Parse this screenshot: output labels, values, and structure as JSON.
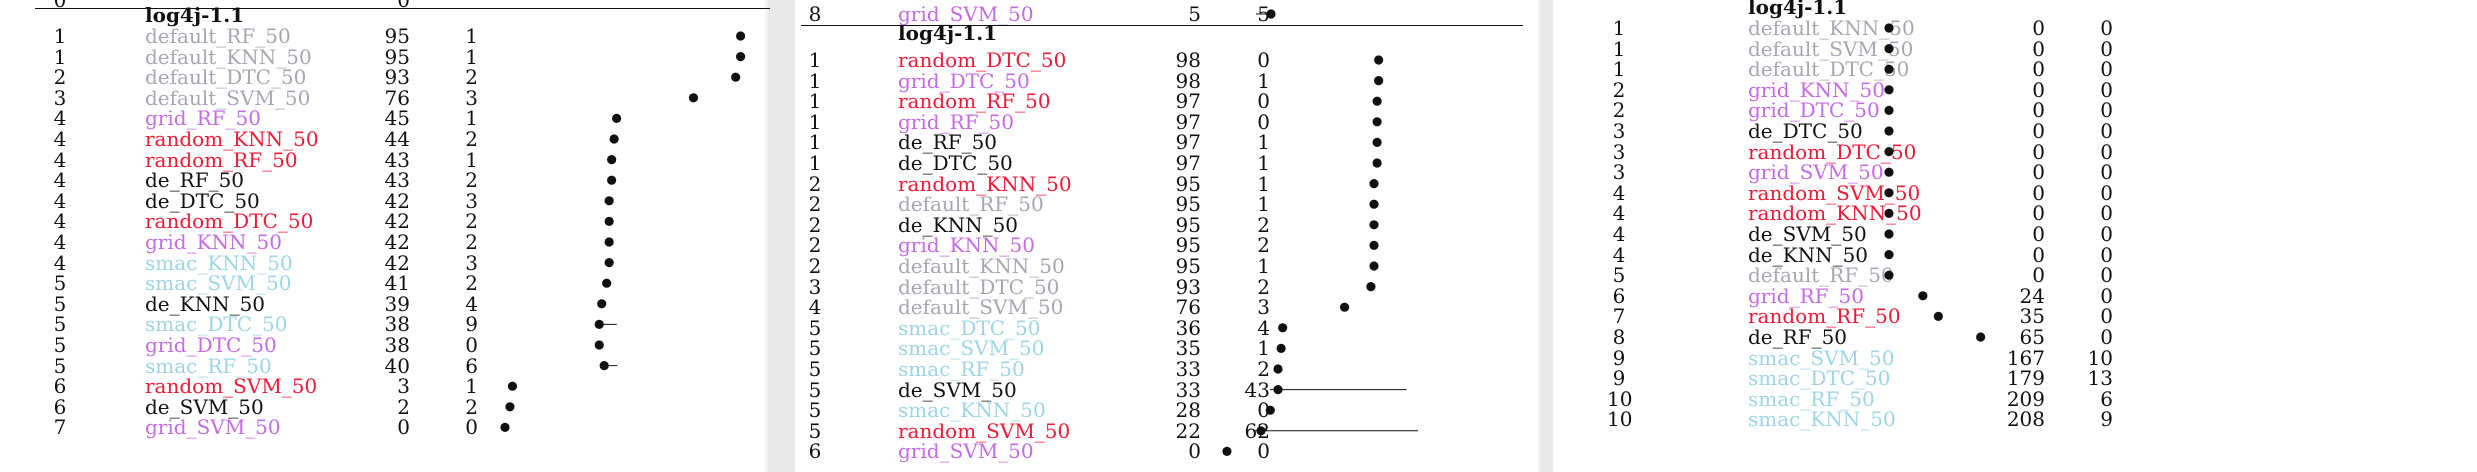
{
  "colors": {
    "black": "#111111",
    "gray": "#a7a7b4",
    "red": "#ef1a36",
    "violet": "#c46be6",
    "cyan": "#9ed5e6"
  },
  "tables": [
    {
      "title": "log4j-1.1",
      "top_partial": {
        "rank": "0",
        "mid": "0"
      },
      "rows": [
        {
          "rank": "1",
          "label": "default_RF_50",
          "color": "gray",
          "v1": "95",
          "v2": "1",
          "mean": 95,
          "err": 0
        },
        {
          "rank": "1",
          "label": "default_KNN_50",
          "color": "gray",
          "v1": "95",
          "v2": "1",
          "mean": 95,
          "err": 0
        },
        {
          "rank": "2",
          "label": "default_DTC_50",
          "color": "gray",
          "v1": "93",
          "v2": "2",
          "mean": 93,
          "err": 0
        },
        {
          "rank": "3",
          "label": "default_SVM_50",
          "color": "gray",
          "v1": "76",
          "v2": "3",
          "mean": 76,
          "err": 0
        },
        {
          "rank": "4",
          "label": "grid_RF_50",
          "color": "violet",
          "v1": "45",
          "v2": "1",
          "mean": 45,
          "err": 0
        },
        {
          "rank": "4",
          "label": "random_KNN_50",
          "color": "red",
          "v1": "44",
          "v2": "2",
          "mean": 44,
          "err": 0
        },
        {
          "rank": "4",
          "label": "random_RF_50",
          "color": "red",
          "v1": "43",
          "v2": "1",
          "mean": 43,
          "err": 0
        },
        {
          "rank": "4",
          "label": "de_RF_50",
          "color": "black",
          "v1": "43",
          "v2": "2",
          "mean": 43,
          "err": 0
        },
        {
          "rank": "4",
          "label": "de_DTC_50",
          "color": "black",
          "v1": "42",
          "v2": "3",
          "mean": 42,
          "err": 0
        },
        {
          "rank": "4",
          "label": "random_DTC_50",
          "color": "red",
          "v1": "42",
          "v2": "2",
          "mean": 42,
          "err": 0
        },
        {
          "rank": "4",
          "label": "grid_KNN_50",
          "color": "violet",
          "v1": "42",
          "v2": "2",
          "mean": 42,
          "err": 0
        },
        {
          "rank": "4",
          "label": "smac_KNN_50",
          "color": "cyan",
          "v1": "42",
          "v2": "3",
          "mean": 42,
          "err": 0
        },
        {
          "rank": "5",
          "label": "smac_SVM_50",
          "color": "cyan",
          "v1": "41",
          "v2": "2",
          "mean": 41,
          "err": 0
        },
        {
          "rank": "5",
          "label": "de_KNN_50",
          "color": "black",
          "v1": "39",
          "v2": "4",
          "mean": 39,
          "err": 0
        },
        {
          "rank": "5",
          "label": "smac_DTC_50",
          "color": "cyan",
          "v1": "38",
          "v2": "9",
          "mean": 38,
          "err": 9
        },
        {
          "rank": "5",
          "label": "grid_DTC_50",
          "color": "violet",
          "v1": "38",
          "v2": "0",
          "mean": 38,
          "err": 0
        },
        {
          "rank": "5",
          "label": "smac_RF_50",
          "color": "cyan",
          "v1": "40",
          "v2": "6",
          "mean": 40,
          "err": 6
        },
        {
          "rank": "6",
          "label": "random_SVM_50",
          "color": "red",
          "v1": "3",
          "v2": "1",
          "mean": 3,
          "err": 0
        },
        {
          "rank": "6",
          "label": "de_SVM_50",
          "color": "black",
          "v1": "2",
          "v2": "2",
          "mean": 2,
          "err": 0
        },
        {
          "rank": "7",
          "label": "grid_SVM_50",
          "color": "violet",
          "v1": "0",
          "v2": "0",
          "mean": 0,
          "err": 0
        }
      ]
    },
    {
      "title": "log4j-1.1",
      "top_partial": {
        "rank": "8",
        "label": "grid_SVM_50",
        "color": "violet",
        "v1": "5",
        "v2": "5",
        "mean": 5,
        "err": 0
      },
      "rows": [
        {
          "rank": "1",
          "label": "random_DTC_50",
          "color": "red",
          "v1": "98",
          "v2": "0",
          "mean": 98,
          "err": 0
        },
        {
          "rank": "1",
          "label": "grid_DTC_50",
          "color": "violet",
          "v1": "98",
          "v2": "1",
          "mean": 98,
          "err": 0
        },
        {
          "rank": "1",
          "label": "random_RF_50",
          "color": "red",
          "v1": "97",
          "v2": "0",
          "mean": 97,
          "err": 0
        },
        {
          "rank": "1",
          "label": "grid_RF_50",
          "color": "violet",
          "v1": "97",
          "v2": "0",
          "mean": 97,
          "err": 0
        },
        {
          "rank": "1",
          "label": "de_RF_50",
          "color": "black",
          "v1": "97",
          "v2": "1",
          "mean": 97,
          "err": 0
        },
        {
          "rank": "1",
          "label": "de_DTC_50",
          "color": "black",
          "v1": "97",
          "v2": "1",
          "mean": 97,
          "err": 0
        },
        {
          "rank": "2",
          "label": "random_KNN_50",
          "color": "red",
          "v1": "95",
          "v2": "1",
          "mean": 95,
          "err": 0
        },
        {
          "rank": "2",
          "label": "default_RF_50",
          "color": "gray",
          "v1": "95",
          "v2": "1",
          "mean": 95,
          "err": 0
        },
        {
          "rank": "2",
          "label": "de_KNN_50",
          "color": "black",
          "v1": "95",
          "v2": "2",
          "mean": 95,
          "err": 0
        },
        {
          "rank": "2",
          "label": "grid_KNN_50",
          "color": "violet",
          "v1": "95",
          "v2": "2",
          "mean": 95,
          "err": 0
        },
        {
          "rank": "2",
          "label": "default_KNN_50",
          "color": "gray",
          "v1": "95",
          "v2": "1",
          "mean": 95,
          "err": 0
        },
        {
          "rank": "3",
          "label": "default_DTC_50",
          "color": "gray",
          "v1": "93",
          "v2": "2",
          "mean": 93,
          "err": 0
        },
        {
          "rank": "4",
          "label": "default_SVM_50",
          "color": "gray",
          "v1": "76",
          "v2": "3",
          "mean": 76,
          "err": 0
        },
        {
          "rank": "5",
          "label": "smac_DTC_50",
          "color": "cyan",
          "v1": "36",
          "v2": "4",
          "mean": 36,
          "err": 0
        },
        {
          "rank": "5",
          "label": "smac_SVM_50",
          "color": "cyan",
          "v1": "35",
          "v2": "1",
          "mean": 35,
          "err": 0
        },
        {
          "rank": "5",
          "label": "smac_RF_50",
          "color": "cyan",
          "v1": "33",
          "v2": "2",
          "mean": 33,
          "err": 0
        },
        {
          "rank": "5",
          "label": "de_SVM_50",
          "color": "black",
          "v1": "33",
          "v2": "43",
          "mean": 33,
          "err": 43
        },
        {
          "rank": "5",
          "label": "smac_KNN_50",
          "color": "cyan",
          "v1": "28",
          "v2": "0",
          "mean": 28,
          "err": 0
        },
        {
          "rank": "5",
          "label": "random_SVM_50",
          "color": "red",
          "v1": "22",
          "v2": "62",
          "mean": 22,
          "err": 62
        },
        {
          "rank": "6",
          "label": "grid_SVM_50",
          "color": "violet",
          "v1": "0",
          "v2": "0",
          "mean": 0,
          "err": 0
        }
      ]
    },
    {
      "title": "log4j-1.1",
      "rows": [
        {
          "rank": "1",
          "label": "default_KNN_50",
          "color": "gray",
          "v1": "0",
          "v2": "0",
          "mean": 0,
          "err": 0
        },
        {
          "rank": "1",
          "label": "default_SVM_50",
          "color": "gray",
          "v1": "0",
          "v2": "0",
          "mean": 0,
          "err": 0
        },
        {
          "rank": "1",
          "label": "default_DTC_50",
          "color": "gray",
          "v1": "0",
          "v2": "0",
          "mean": 0,
          "err": 0
        },
        {
          "rank": "2",
          "label": "grid_KNN_50",
          "color": "violet",
          "v1": "0",
          "v2": "0",
          "mean": 0,
          "err": 0
        },
        {
          "rank": "2",
          "label": "grid_DTC_50",
          "color": "violet",
          "v1": "0",
          "v2": "0",
          "mean": 0,
          "err": 0
        },
        {
          "rank": "3",
          "label": "de_DTC_50",
          "color": "black",
          "v1": "0",
          "v2": "0",
          "mean": 0,
          "err": 0
        },
        {
          "rank": "3",
          "label": "random_DTC_50",
          "color": "red",
          "v1": "0",
          "v2": "0",
          "mean": 0,
          "err": 0
        },
        {
          "rank": "3",
          "label": "grid_SVM_50",
          "color": "violet",
          "v1": "0",
          "v2": "0",
          "mean": 0,
          "err": 0
        },
        {
          "rank": "4",
          "label": "random_SVM_50",
          "color": "red",
          "v1": "0",
          "v2": "0",
          "mean": 0,
          "err": 0
        },
        {
          "rank": "4",
          "label": "random_KNN_50",
          "color": "red",
          "v1": "0",
          "v2": "0",
          "mean": 0,
          "err": 0
        },
        {
          "rank": "4",
          "label": "de_SVM_50",
          "color": "black",
          "v1": "0",
          "v2": "0",
          "mean": 0,
          "err": 0
        },
        {
          "rank": "4",
          "label": "de_KNN_50",
          "color": "black",
          "v1": "0",
          "v2": "0",
          "mean": 0,
          "err": 0
        },
        {
          "rank": "5",
          "label": "default_RF_50",
          "color": "gray",
          "v1": "0",
          "v2": "0",
          "mean": 0,
          "err": 0
        },
        {
          "rank": "6",
          "label": "grid_RF_50",
          "color": "violet",
          "v1": "24",
          "v2": "0",
          "mean": 24,
          "err": 0
        },
        {
          "rank": "7",
          "label": "random_RF_50",
          "color": "red",
          "v1": "35",
          "v2": "0",
          "mean": 35,
          "err": 0
        },
        {
          "rank": "8",
          "label": "de_RF_50",
          "color": "black",
          "v1": "65",
          "v2": "0",
          "mean": 65,
          "err": 0
        },
        {
          "rank": "9",
          "label": "smac_SVM_50",
          "color": "cyan",
          "v1": "167",
          "v2": "10",
          "mean": null,
          "err": 0
        },
        {
          "rank": "9",
          "label": "smac_DTC_50",
          "color": "cyan",
          "v1": "179",
          "v2": "13",
          "mean": null,
          "err": 0
        },
        {
          "rank": "10",
          "label": "smac_RF_50",
          "color": "cyan",
          "v1": "209",
          "v2": "6",
          "mean": null,
          "err": 0
        },
        {
          "rank": "10",
          "label": "smac_KNN_50",
          "color": "cyan",
          "v1": "208",
          "v2": "9",
          "mean": null,
          "err": 0
        }
      ]
    }
  ]
}
